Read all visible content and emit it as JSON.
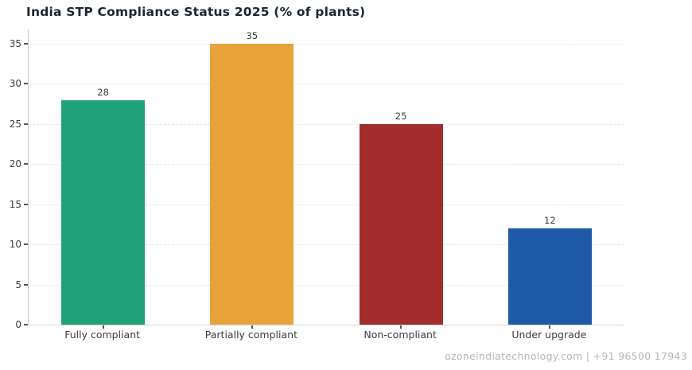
{
  "chart_data": {
    "type": "bar",
    "title": "India STP Compliance Status 2025 (% of plants)",
    "categories": [
      "Fully compliant",
      "Partially compliant",
      "Non-compliant",
      "Under upgrade"
    ],
    "values": [
      28,
      35,
      25,
      12
    ],
    "bar_colors": [
      "#21a179",
      "#e8a33a",
      "#a32c2c",
      "#1f5aa8"
    ],
    "xlabel": "",
    "ylabel": "",
    "ylim": [
      0,
      35
    ],
    "yticks": [
      0,
      5,
      10,
      15,
      20,
      25,
      30,
      35
    ],
    "grid": "horizontal-dashed",
    "value_labels": true,
    "legend": "none"
  },
  "colors": {
    "title_text": "#1c2533",
    "tick_text": "#3d3d3d",
    "grid_line": "#e7e7e7",
    "footer_text": "#b4b4b4",
    "background": "#ffffff"
  },
  "footer": {
    "text": "ozoneindiatechnology.com | +91 96500 17943"
  }
}
